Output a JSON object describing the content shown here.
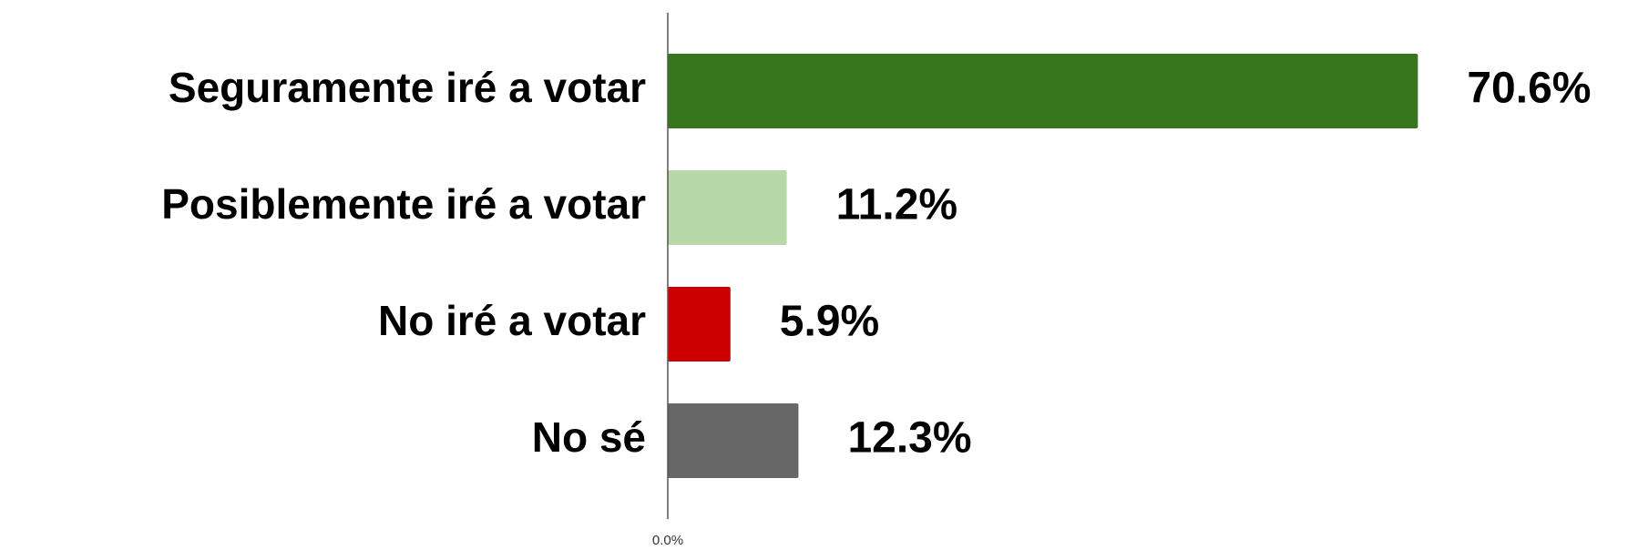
{
  "chart_data": {
    "type": "bar",
    "orientation": "horizontal",
    "categories": [
      "Seguramente iré a votar",
      "Posiblemente iré a votar",
      "No iré a votar",
      "No sé"
    ],
    "values": [
      70.6,
      11.2,
      5.9,
      12.3
    ],
    "value_labels": [
      "70.6%",
      "11.2%",
      "5.9%",
      "12.3%"
    ],
    "colors": [
      "#38761d",
      "#b6d7a8",
      "#cc0000",
      "#666666"
    ],
    "xlim": [
      0,
      80
    ],
    "xticks": [
      {
        "value": 0,
        "label": "0.0%"
      }
    ],
    "grid": false
  }
}
